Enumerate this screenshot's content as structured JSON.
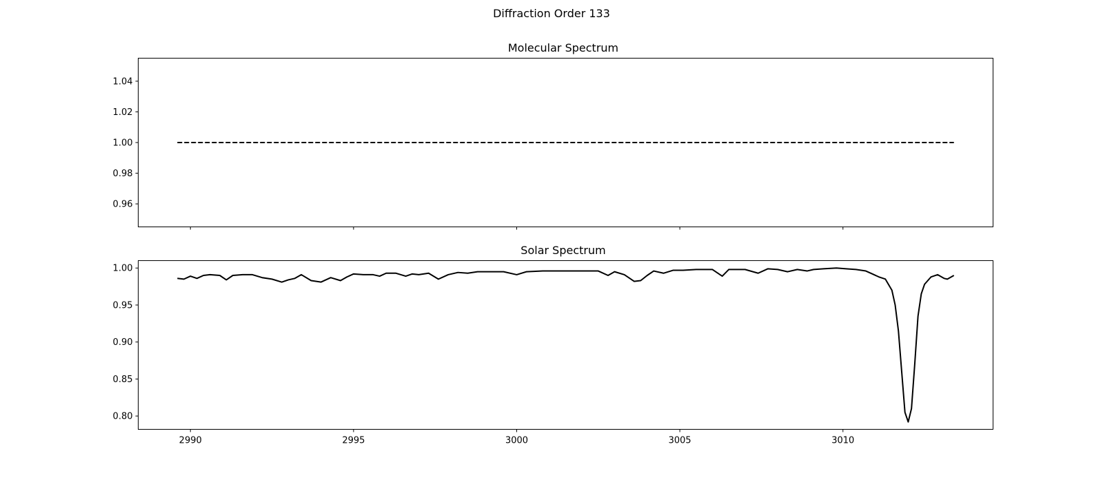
{
  "figure": {
    "title": "Diffraction Order 133"
  },
  "chart_data": [
    {
      "type": "line",
      "title": "Molecular Spectrum",
      "xlim": [
        2988.4,
        3014.6
      ],
      "ylim": [
        0.945,
        1.055
      ],
      "x_ticks": [
        2990,
        2995,
        3000,
        3005,
        3010
      ],
      "x_tick_labels_shown": false,
      "y_ticks": [
        0.96,
        0.98,
        1.0,
        1.02,
        1.04
      ],
      "y_tick_labels": [
        "0.96",
        "0.98",
        "1.00",
        "1.02",
        "1.04"
      ],
      "series": [
        {
          "name": "molecular",
          "style": "dashed",
          "color": "#000000",
          "x": [
            2989.6,
            3013.4
          ],
          "y": [
            1.0,
            1.0
          ]
        }
      ]
    },
    {
      "type": "line",
      "title": "Solar Spectrum",
      "xlim": [
        2988.4,
        3014.6
      ],
      "ylim": [
        0.782,
        1.01
      ],
      "x_ticks": [
        2990,
        2995,
        3000,
        3005,
        3010
      ],
      "x_tick_labels": [
        "2990",
        "2995",
        "3000",
        "3005",
        "3010"
      ],
      "y_ticks": [
        0.8,
        0.85,
        0.9,
        0.95,
        1.0
      ],
      "y_tick_labels": [
        "0.80",
        "0.85",
        "0.90",
        "0.95",
        "1.00"
      ],
      "series": [
        {
          "name": "solar",
          "style": "solid",
          "color": "#000000",
          "x": [
            2989.6,
            2989.8,
            2990.0,
            2990.2,
            2990.4,
            2990.6,
            2990.9,
            2991.1,
            2991.3,
            2991.6,
            2991.9,
            2992.2,
            2992.5,
            2992.8,
            2993.0,
            2993.2,
            2993.4,
            2993.7,
            2994.0,
            2994.3,
            2994.6,
            2994.8,
            2995.0,
            2995.3,
            2995.6,
            2995.8,
            2996.0,
            2996.3,
            2996.6,
            2996.8,
            2997.0,
            2997.3,
            2997.6,
            2997.9,
            2998.2,
            2998.5,
            2998.8,
            2999.2,
            2999.6,
            3000.0,
            3000.3,
            3000.8,
            3001.5,
            3002.0,
            3002.5,
            3002.8,
            3003.0,
            3003.3,
            3003.6,
            3003.8,
            3004.0,
            3004.2,
            3004.5,
            3004.8,
            3005.1,
            3005.5,
            3006.0,
            3006.3,
            3006.5,
            3006.8,
            3007.0,
            3007.4,
            3007.7,
            3008.0,
            3008.3,
            3008.6,
            3008.9,
            3009.1,
            3009.4,
            3009.8,
            3010.1,
            3010.4,
            3010.7,
            3010.9,
            3011.1,
            3011.3,
            3011.5,
            3011.6,
            3011.7,
            3011.8,
            3011.9,
            3012.0,
            3012.1,
            3012.2,
            3012.3,
            3012.4,
            3012.5,
            3012.7,
            3012.9,
            3013.1,
            3013.2,
            3013.4
          ],
          "y": [
            0.986,
            0.985,
            0.989,
            0.986,
            0.99,
            0.991,
            0.99,
            0.984,
            0.99,
            0.991,
            0.991,
            0.987,
            0.985,
            0.981,
            0.984,
            0.986,
            0.991,
            0.983,
            0.981,
            0.987,
            0.983,
            0.988,
            0.992,
            0.991,
            0.991,
            0.989,
            0.993,
            0.993,
            0.989,
            0.992,
            0.991,
            0.993,
            0.985,
            0.991,
            0.994,
            0.993,
            0.995,
            0.995,
            0.995,
            0.991,
            0.995,
            0.996,
            0.996,
            0.996,
            0.996,
            0.99,
            0.995,
            0.991,
            0.982,
            0.983,
            0.99,
            0.996,
            0.993,
            0.997,
            0.997,
            0.998,
            0.998,
            0.989,
            0.998,
            0.998,
            0.998,
            0.993,
            0.999,
            0.998,
            0.995,
            0.998,
            0.996,
            0.998,
            0.999,
            1.0,
            0.999,
            0.998,
            0.996,
            0.992,
            0.988,
            0.985,
            0.97,
            0.95,
            0.915,
            0.86,
            0.805,
            0.792,
            0.81,
            0.87,
            0.935,
            0.965,
            0.978,
            0.988,
            0.991,
            0.986,
            0.985,
            0.99
          ]
        }
      ]
    }
  ]
}
